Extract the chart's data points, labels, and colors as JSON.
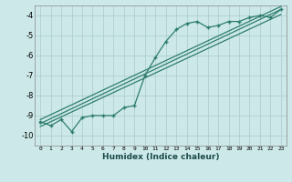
{
  "xlabel": "Humidex (Indice chaleur)",
  "bg_color": "#cce8e8",
  "grid_color": "#aacccc",
  "line_color": "#2e7d6e",
  "xlim": [
    -0.5,
    23.5
  ],
  "ylim": [
    -10.5,
    -3.5
  ],
  "yticks": [
    -10,
    -9,
    -8,
    -7,
    -6,
    -5,
    -4
  ],
  "xticks": [
    0,
    1,
    2,
    3,
    4,
    5,
    6,
    7,
    8,
    9,
    10,
    11,
    12,
    13,
    14,
    15,
    16,
    17,
    18,
    19,
    20,
    21,
    22,
    23
  ],
  "line1_x": [
    0,
    1,
    2,
    3,
    4,
    5,
    6,
    7,
    8,
    9,
    10,
    11,
    12,
    13,
    14,
    15,
    16,
    17,
    18,
    19,
    20,
    21,
    22,
    23
  ],
  "line1_y": [
    -9.3,
    -9.5,
    -9.2,
    -9.8,
    -9.1,
    -9.0,
    -9.0,
    -9.0,
    -8.6,
    -8.5,
    -7.0,
    -6.1,
    -5.3,
    -4.7,
    -4.4,
    -4.3,
    -4.6,
    -4.5,
    -4.3,
    -4.3,
    -4.1,
    -4.0,
    -4.1,
    -3.7
  ],
  "line2_x": [
    0,
    23
  ],
  "line2_y": [
    -9.4,
    -3.7
  ],
  "line3_x": [
    0,
    23
  ],
  "line3_y": [
    -9.55,
    -3.95
  ],
  "line4_x": [
    0,
    23
  ],
  "line4_y": [
    -9.2,
    -3.55
  ]
}
